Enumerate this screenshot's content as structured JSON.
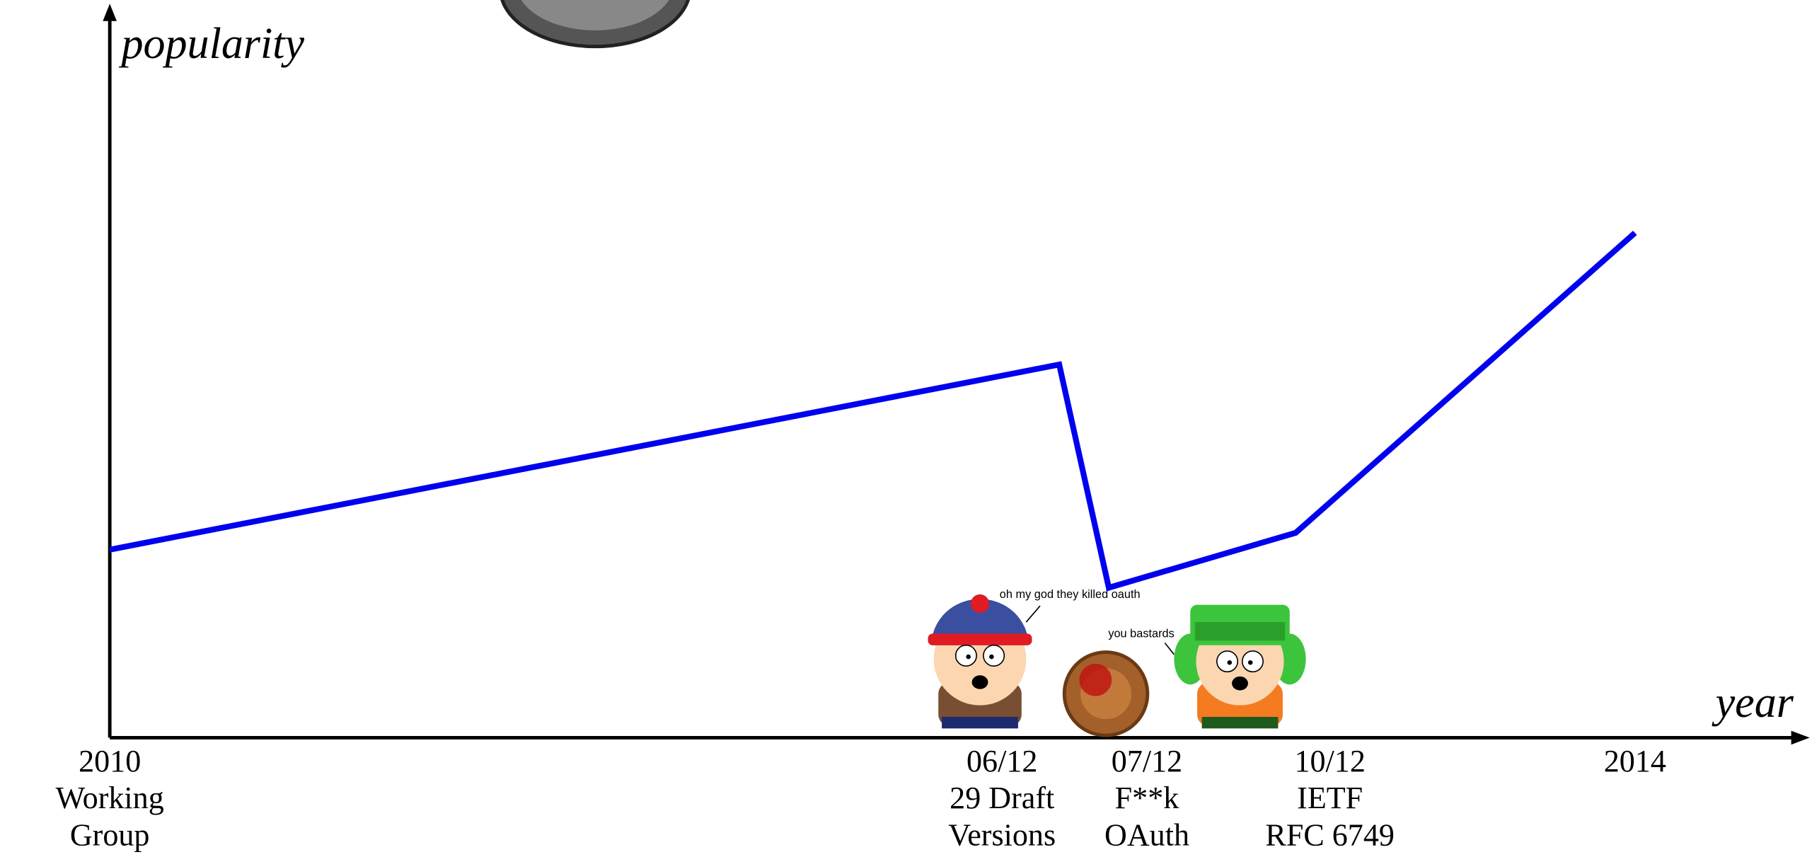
{
  "chart_data": {
    "type": "line",
    "x_label": "year",
    "y_label": "popularity",
    "xlim": [
      2010,
      2014.44
    ],
    "ylim": [
      0,
      100
    ],
    "xticks": [
      {
        "value": 2010,
        "label": [
          "2010",
          "Working",
          "Group"
        ]
      },
      {
        "value": 2012.34,
        "label": [
          "06/12",
          "29 Draft",
          "Versions"
        ]
      },
      {
        "value": 2012.72,
        "label": [
          "07/12",
          "F**k",
          "OAuth"
        ]
      },
      {
        "value": 2013.2,
        "label": [
          "10/12",
          "IETF",
          "RFC 6749"
        ]
      },
      {
        "value": 2014,
        "label": [
          "2014"
        ]
      }
    ],
    "x": [
      2010,
      2012.49,
      2012.62,
      2013.11,
      2014
    ],
    "series": [
      {
        "color": "#0000ee",
        "values": [
          25.7,
          51,
          20.5,
          28,
          69
        ]
      }
    ],
    "annotations": [
      "oh my god they killed oauth",
      "you bastards"
    ]
  }
}
